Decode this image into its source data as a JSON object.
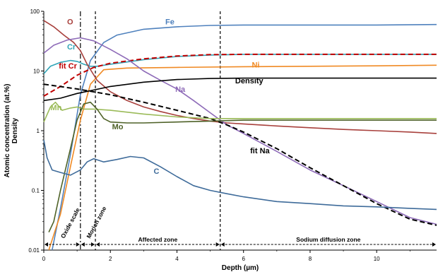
{
  "chart_data": {
    "type": "line",
    "xlabel": "Depth (µm)",
    "ylabel": "Atomic concentration (at.%) Density",
    "ylabel_lines": [
      "Atomic concentration (at.%)",
      "Density"
    ],
    "xlim": [
      0,
      11.8
    ],
    "ylim": [
      0.01,
      100
    ],
    "yscale": "log",
    "x_ticks": [
      0,
      2,
      4,
      6,
      8,
      10
    ],
    "y_ticks": [
      {
        "value": 0.01,
        "label": "0.01"
      },
      {
        "value": 0.1,
        "label": "0.1"
      },
      {
        "value": 1,
        "label": "1"
      },
      {
        "value": 10,
        "label": "10"
      },
      {
        "value": 100,
        "label": "100"
      }
    ],
    "grid": false,
    "legend": "inline labels next to each curve",
    "series": [
      {
        "name": "Fe",
        "color": "#4f81bd",
        "style": "solid",
        "x": [
          0.25,
          0.5,
          0.8,
          1.1,
          1.4,
          1.8,
          2.2,
          3.0,
          4.0,
          5.0,
          6.0,
          8.0,
          10.0,
          11.8
        ],
        "y": [
          0.01,
          0.05,
          0.4,
          4,
          15,
          30,
          40,
          50,
          55,
          58,
          59,
          59,
          59,
          60
        ]
      },
      {
        "name": "Cr",
        "color": "#31a5b8",
        "style": "solid",
        "x": [
          0.0,
          0.2,
          0.5,
          0.8,
          1.0,
          1.2,
          1.4,
          1.6,
          2.0,
          3.0,
          4.0,
          5.0,
          6.0,
          8.0,
          10.0,
          11.8
        ],
        "y": [
          9,
          12,
          14,
          15,
          14.5,
          13,
          12,
          12,
          13,
          15.5,
          17.5,
          18.5,
          19,
          19,
          19,
          19
        ]
      },
      {
        "name": "fit Cr",
        "color": "#c00000",
        "style": "dashed",
        "x": [
          0.0,
          0.5,
          1.0,
          1.5,
          2.0,
          3.0,
          4.0,
          5.0,
          6.0,
          8.0,
          10.0,
          11.8
        ],
        "y": [
          3.8,
          5.5,
          8.5,
          11.5,
          13.5,
          16,
          17.8,
          18.8,
          19,
          19,
          19,
          19
        ]
      },
      {
        "name": "Ni",
        "color": "#f08a24",
        "style": "solid",
        "x": [
          0.15,
          0.3,
          0.5,
          0.8,
          1.1,
          1.4,
          1.8,
          2.5,
          4.0,
          6.0,
          8.0,
          10.0,
          11.8
        ],
        "y": [
          0.01,
          0.018,
          0.04,
          0.25,
          1.5,
          6,
          10.5,
          11.2,
          11.5,
          11.8,
          12,
          12.2,
          12.5
        ]
      },
      {
        "name": "O",
        "color": "#a8403c",
        "style": "solid",
        "x": [
          0.0,
          0.3,
          0.6,
          0.9,
          1.1,
          1.3,
          1.6,
          2.0,
          2.5,
          3.0,
          3.5,
          4.0,
          4.5,
          5.0,
          5.5,
          6.0,
          7.0,
          8.0,
          9.0,
          10.0,
          11.0,
          11.8
        ],
        "y": [
          70,
          55,
          40,
          30,
          22,
          13,
          7,
          4.5,
          3.2,
          2.5,
          2.1,
          1.8,
          1.6,
          1.45,
          1.35,
          1.3,
          1.2,
          1.12,
          1.05,
          1.0,
          0.95,
          0.9
        ]
      },
      {
        "name": "Na",
        "color": "#8e6bb8",
        "style": "solid",
        "x": [
          0.0,
          0.3,
          0.7,
          1.1,
          1.5,
          2.0,
          2.5,
          3.0,
          3.5,
          4.0,
          4.5,
          5.0,
          5.5,
          6.0,
          7.0,
          8.0,
          9.0,
          10.0,
          11.0,
          11.8
        ],
        "y": [
          20,
          27,
          33,
          36,
          32,
          23,
          16,
          10,
          7,
          5,
          3.2,
          2.0,
          1.25,
          0.9,
          0.45,
          0.22,
          0.12,
          0.065,
          0.035,
          0.027
        ]
      },
      {
        "name": "fit Na",
        "color": "#000000",
        "style": "dashed",
        "x": [
          0.0,
          1.0,
          2.0,
          3.0,
          4.0,
          5.0,
          5.5,
          6.0,
          7.0,
          8.0,
          9.0,
          10.0,
          11.0,
          11.8
        ],
        "y": [
          6,
          5.0,
          4.0,
          3.0,
          2.2,
          1.6,
          1.25,
          0.95,
          0.5,
          0.24,
          0.12,
          0.06,
          0.033,
          0.026
        ]
      },
      {
        "name": "Density",
        "color": "#000000",
        "style": "solid",
        "x": [
          0.0,
          0.5,
          1.0,
          1.5,
          2.0,
          3.0,
          4.0,
          5.0,
          6.0,
          8.0,
          10.0,
          11.8
        ],
        "y": [
          3.2,
          3.5,
          4.2,
          4.8,
          5.5,
          6.5,
          7.2,
          7.5,
          7.6,
          7.6,
          7.6,
          7.6
        ]
      },
      {
        "name": "Mn",
        "color": "#9bbb59",
        "style": "solid",
        "x": [
          0.0,
          0.2,
          0.35,
          0.55,
          0.8,
          1.0,
          1.2,
          1.5,
          2.0,
          3.0,
          4.0,
          5.0,
          6.0,
          8.0,
          10.0,
          11.8
        ],
        "y": [
          1.4,
          2.5,
          3.0,
          2.2,
          2.4,
          2.5,
          2.3,
          2.3,
          2.2,
          1.9,
          1.7,
          1.6,
          1.6,
          1.6,
          1.6,
          1.6
        ]
      },
      {
        "name": "Mo",
        "color": "#4f6228",
        "style": "solid",
        "x": [
          0.15,
          0.3,
          0.5,
          0.8,
          1.0,
          1.2,
          1.4,
          1.6,
          1.8,
          2.0,
          2.5,
          3.0,
          4.0,
          5.0,
          6.0,
          8.0,
          10.0,
          11.8
        ],
        "y": [
          0.02,
          0.03,
          0.1,
          0.5,
          1.5,
          2.8,
          3.0,
          2.3,
          1.6,
          1.4,
          1.35,
          1.35,
          1.4,
          1.45,
          1.5,
          1.5,
          1.5,
          1.5
        ]
      },
      {
        "name": "C",
        "color": "#3e6b9a",
        "style": "solid",
        "x": [
          0.0,
          0.1,
          0.25,
          0.5,
          0.8,
          1.1,
          1.3,
          1.5,
          1.8,
          2.2,
          2.6,
          3.0,
          3.5,
          4.0,
          4.5,
          5.0,
          5.5,
          6.0,
          7.0,
          8.0,
          9.0,
          10.0,
          11.0,
          11.8
        ],
        "y": [
          0.7,
          0.35,
          0.22,
          0.2,
          0.18,
          0.22,
          0.3,
          0.34,
          0.3,
          0.33,
          0.37,
          0.35,
          0.25,
          0.17,
          0.12,
          0.1,
          0.088,
          0.078,
          0.065,
          0.06,
          0.055,
          0.053,
          0.05,
          0.048
        ]
      }
    ],
    "curve_labels": [
      {
        "series": "O",
        "text": "O",
        "color": "#a8403c",
        "x": 0.7,
        "y": 60
      },
      {
        "series": "Fe",
        "text": "Fe",
        "color": "#4f81bd",
        "x": 3.65,
        "y": 60
      },
      {
        "series": "Cr",
        "text": "Cr",
        "color": "#31a5b8",
        "x": 0.7,
        "y": 23
      },
      {
        "series": "fit Cr",
        "text": "fit Cr",
        "color": "#c00000",
        "x": 0.45,
        "y": 11
      },
      {
        "series": "Ni",
        "text": "Ni",
        "color": "#f08a24",
        "x": 6.25,
        "y": 11.5
      },
      {
        "series": "Density",
        "text": "Density",
        "color": "#000000",
        "x": 5.75,
        "y": 6.2
      },
      {
        "series": "Na",
        "text": "Na",
        "color": "#8e6bb8",
        "x": 3.95,
        "y": 4.5
      },
      {
        "series": "Mn",
        "text": "Mn",
        "color": "#9bbb59",
        "x": 0.2,
        "y": 2.2
      },
      {
        "series": "Mo",
        "text": "Mo",
        "color": "#4f6228",
        "x": 2.05,
        "y": 1.05
      },
      {
        "series": "fit Na",
        "text": "fit Na",
        "color": "#000000",
        "x": 6.2,
        "y": 0.42
      },
      {
        "series": "C",
        "text": "C",
        "color": "#3e6b9a",
        "x": 3.3,
        "y": 0.19
      }
    ],
    "vertical_lines": [
      {
        "x": 1.1,
        "style": "dash-dot"
      },
      {
        "x": 1.55,
        "style": "dashed"
      },
      {
        "x": 5.3,
        "style": "dashed"
      }
    ],
    "zones": [
      {
        "label": "Oxide scale",
        "from": 0,
        "to": 1.1
      },
      {
        "label": "Morich zone",
        "from": 1.1,
        "to": 1.55
      },
      {
        "label": "Affected zone",
        "from": 1.55,
        "to": 5.3
      },
      {
        "label": "Sodium diffusion zone",
        "from": 5.3,
        "to": 11.8
      }
    ]
  }
}
